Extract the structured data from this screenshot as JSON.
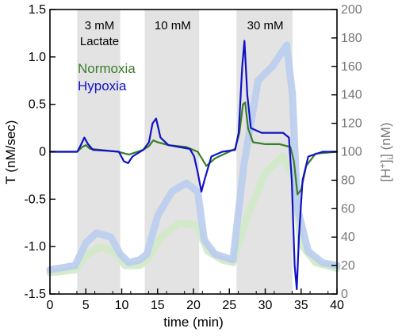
{
  "chart_data": {
    "type": "line",
    "title": "",
    "xlabel": "time (min)",
    "ylabel": "T (nM/sec)",
    "y2label_prefix": "[H",
    "y2label_sup": "+",
    "y2label_sub": "i",
    "y2label_suffix": "] (nM)",
    "xlim": [
      0,
      40
    ],
    "ylim": [
      -1.5,
      1.5
    ],
    "y2lim": [
      0,
      200
    ],
    "x_ticks": [
      "0",
      "5",
      "10",
      "15",
      "20",
      "25",
      "30",
      "35",
      "40"
    ],
    "y_ticks": [
      "-1.5",
      "-1.0",
      "-0.5",
      "0",
      "0.5",
      "1.0",
      "1.5"
    ],
    "y2_ticks": [
      "0",
      "20",
      "40",
      "60",
      "80",
      "100",
      "120",
      "140",
      "160",
      "180",
      "200"
    ],
    "grid": false,
    "bands": [
      {
        "x0": 3.8,
        "x1": 9.8,
        "label_line1": "3 mM",
        "label_line2": "Lactate"
      },
      {
        "x0": 13.2,
        "x1": 20.8,
        "label_line1": "10 mM",
        "label_line2": ""
      },
      {
        "x0": 26.0,
        "x1": 33.8,
        "label_line1": "30 mM",
        "label_line2": ""
      }
    ],
    "legend": {
      "position": "top-left",
      "entries": [
        "Normoxia",
        "Hypoxia"
      ]
    },
    "series": [
      {
        "name": "Hypoxia",
        "axis": "left",
        "color": "#1010c8",
        "x": [
          0,
          3.8,
          4.3,
          4.8,
          5.3,
          6.0,
          8.0,
          9.6,
          10.3,
          10.9,
          11.5,
          13.0,
          13.8,
          14.3,
          14.8,
          15.4,
          16.5,
          18.0,
          19.5,
          20.1,
          20.6,
          21.1,
          21.6,
          22.5,
          24.0,
          25.8,
          26.3,
          26.8,
          27.1,
          27.5,
          28.0,
          29.5,
          31.0,
          32.5,
          33.3,
          33.7,
          34.1,
          34.4,
          34.7,
          35.2,
          36.0,
          38.0,
          40.0
        ],
        "y": [
          0.0,
          0.0,
          0.07,
          0.15,
          0.08,
          0.02,
          0.01,
          0.0,
          -0.1,
          -0.12,
          -0.05,
          0.02,
          0.1,
          0.3,
          0.35,
          0.15,
          0.07,
          0.05,
          0.03,
          -0.05,
          -0.22,
          -0.42,
          -0.28,
          -0.05,
          0.0,
          0.02,
          0.2,
          0.9,
          1.17,
          0.6,
          0.25,
          0.2,
          0.2,
          0.2,
          0.15,
          -0.3,
          -1.2,
          -1.45,
          -0.9,
          -0.3,
          -0.05,
          0.0,
          0.0
        ]
      },
      {
        "name": "Normoxia",
        "axis": "left",
        "color": "#3a7d2a",
        "x": [
          0,
          3.8,
          4.5,
          5.0,
          5.6,
          7.0,
          9.5,
          11.0,
          13.0,
          13.8,
          14.4,
          15.0,
          16.5,
          19.0,
          20.6,
          21.8,
          23.0,
          25.8,
          26.4,
          26.9,
          27.2,
          27.6,
          28.3,
          30.0,
          32.0,
          33.5,
          34.0,
          34.5,
          35.0,
          35.7,
          37.0,
          40.0
        ],
        "y": [
          0.0,
          0.0,
          0.05,
          0.07,
          0.03,
          0.02,
          0.0,
          -0.03,
          0.02,
          0.06,
          0.12,
          0.1,
          0.07,
          0.05,
          0.0,
          -0.15,
          -0.07,
          0.03,
          0.2,
          0.5,
          0.52,
          0.25,
          0.1,
          0.08,
          0.08,
          0.05,
          -0.1,
          -0.45,
          -0.4,
          -0.15,
          -0.02,
          0.0
        ]
      },
      {
        "name": "",
        "axis": "right",
        "color": "#b9cdee",
        "x": [
          0,
          3.5,
          5.0,
          6.5,
          8.5,
          9.8,
          11.0,
          12.5,
          13.5,
          15.0,
          17.0,
          19.0,
          20.6,
          21.5,
          23.0,
          25.5,
          27.0,
          29.0,
          31.0,
          33.0,
          33.8,
          34.5,
          36.0,
          38.0,
          40.0
        ],
        "y": [
          17,
          20,
          36,
          43,
          40,
          28,
          22,
          24,
          28,
          55,
          72,
          78,
          72,
          38,
          28,
          24,
          90,
          150,
          160,
          175,
          140,
          60,
          30,
          22,
          20
        ]
      },
      {
        "name": "",
        "axis": "right",
        "color": "#cfe9c6",
        "x": [
          0,
          3.5,
          5.0,
          7.0,
          9.0,
          10.5,
          12.5,
          13.5,
          15.5,
          18.0,
          20.5,
          22.0,
          24.0,
          25.5,
          27.5,
          30.0,
          32.5,
          34.0,
          35.0,
          37.0,
          40.0
        ],
        "y": [
          15,
          17,
          27,
          33,
          30,
          20,
          20,
          24,
          40,
          50,
          48,
          30,
          24,
          22,
          55,
          85,
          97,
          80,
          35,
          22,
          18
        ]
      }
    ]
  }
}
